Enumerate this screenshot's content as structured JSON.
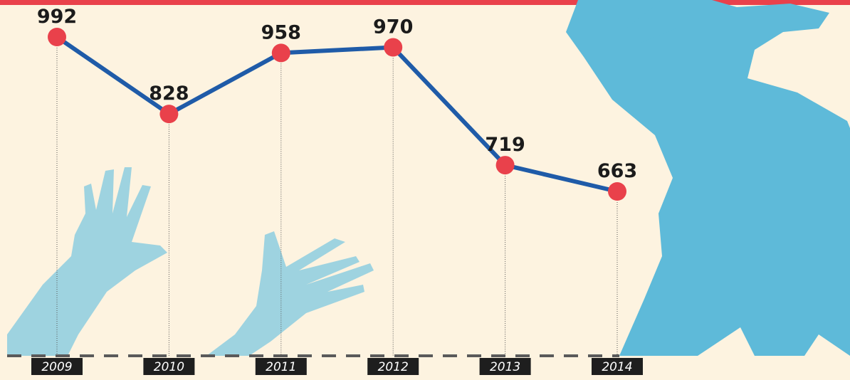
{
  "chart_data": {
    "type": "line",
    "categories": [
      "2009",
      "2010",
      "2011",
      "2012",
      "2013",
      "2014"
    ],
    "values": [
      992,
      828,
      958,
      970,
      719,
      663
    ],
    "color": "#1f5ba8",
    "marker_color": "#e9414b"
  }
}
